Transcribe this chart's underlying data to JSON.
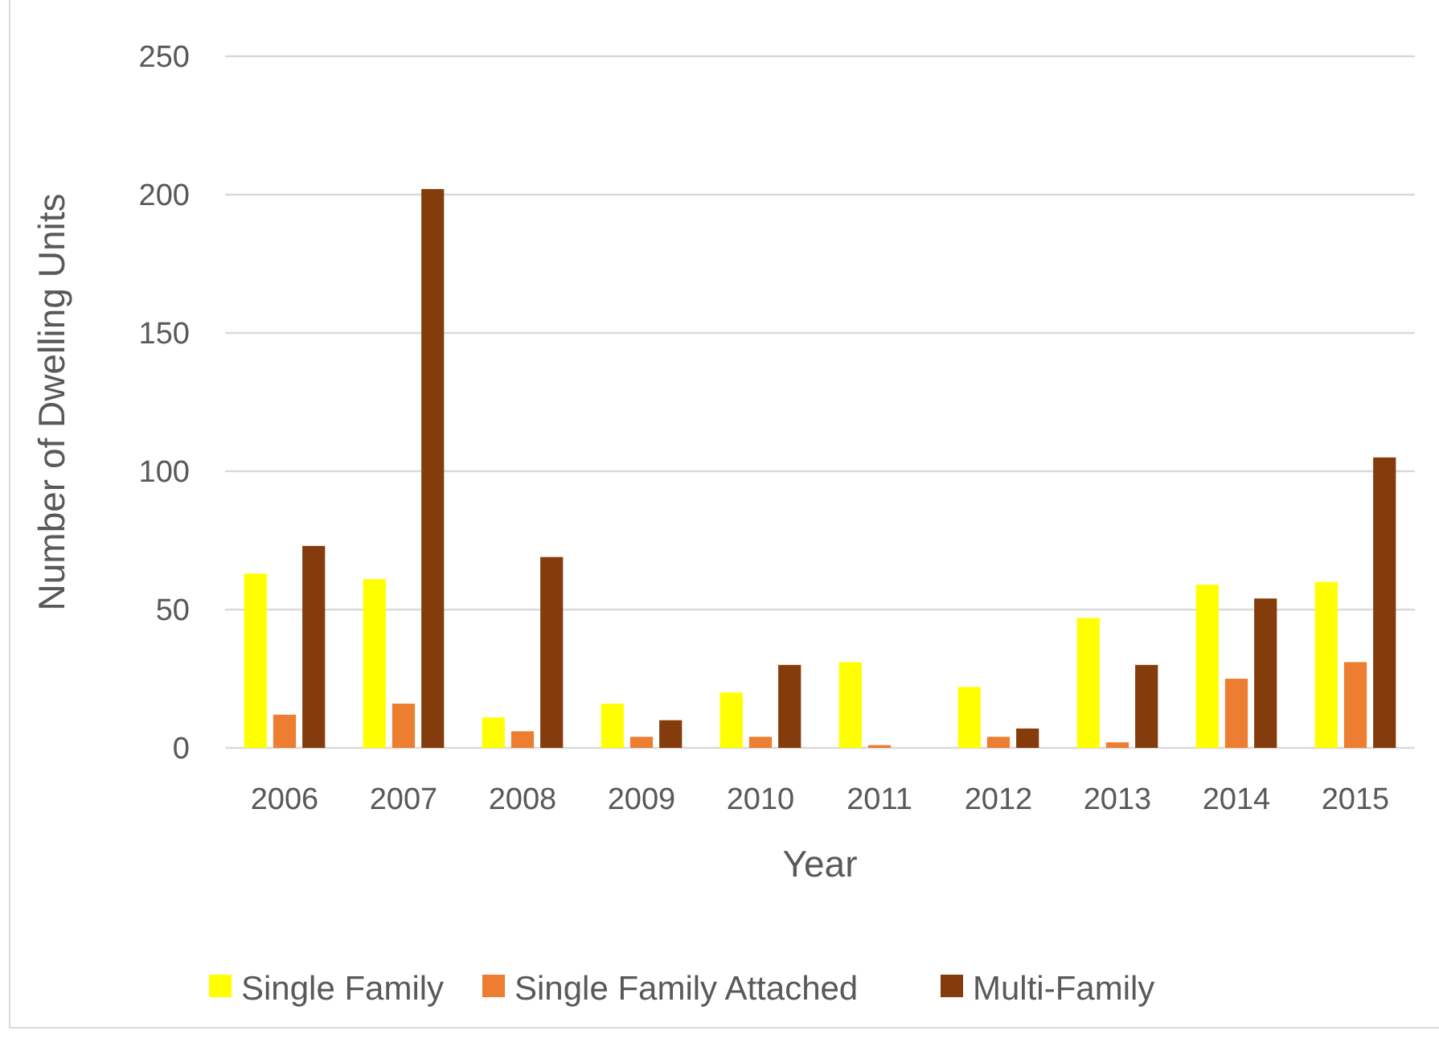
{
  "chart_data": {
    "type": "bar",
    "xlabel": "Year",
    "ylabel": "Number of Dwelling Units",
    "categories": [
      "2006",
      "2007",
      "2008",
      "2009",
      "2010",
      "2011",
      "2012",
      "2013",
      "2014",
      "2015"
    ],
    "series": [
      {
        "name": "Single Family",
        "color": "#ffff00",
        "values": [
          63,
          61,
          11,
          16,
          20,
          31,
          22,
          47,
          59,
          60
        ]
      },
      {
        "name": "Single Family Attached",
        "color": "#ed7d31",
        "values": [
          12,
          16,
          6,
          4,
          4,
          1,
          4,
          2,
          25,
          31
        ]
      },
      {
        "name": "Multi-Family",
        "color": "#843c0c",
        "values": [
          73,
          202,
          69,
          10,
          30,
          0,
          7,
          30,
          54,
          105
        ]
      }
    ],
    "ylim": [
      0,
      250
    ],
    "yticks": [
      0,
      50,
      100,
      150,
      200,
      250
    ],
    "grid": "y",
    "legend": "bottom"
  }
}
